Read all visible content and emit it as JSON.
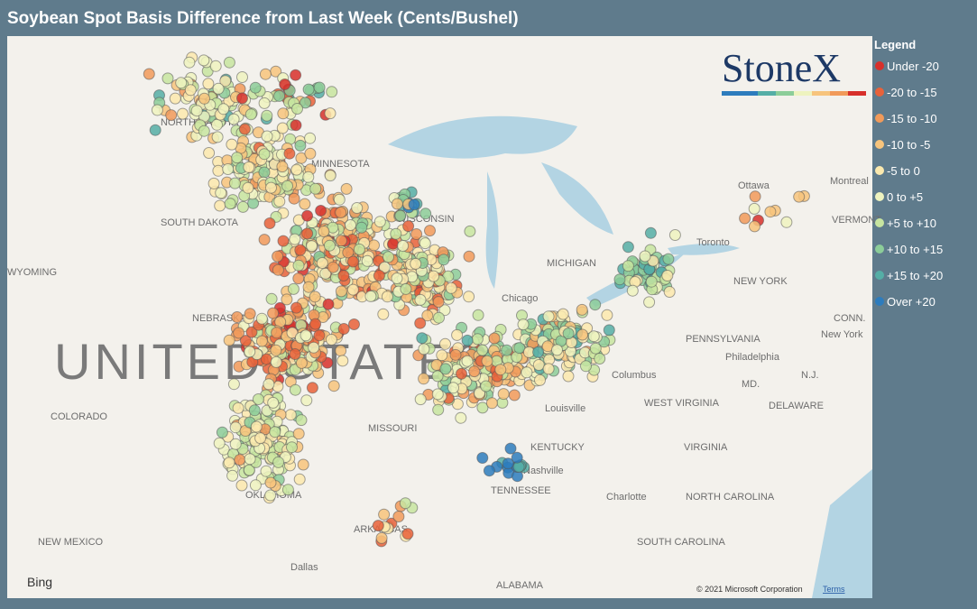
{
  "header": {
    "title": "Soybean Spot Basis Difference from Last Week (Cents/Bushel)"
  },
  "legend": {
    "title": "Legend",
    "items": [
      {
        "label": "Under -20",
        "color": "#d7302b"
      },
      {
        "label": "-20 to -15",
        "color": "#e8623a"
      },
      {
        "label": "-15 to -10",
        "color": "#f19a5a"
      },
      {
        "label": "-10 to -5",
        "color": "#f7c47c"
      },
      {
        "label": "-5 to 0",
        "color": "#fbe9ae"
      },
      {
        "label": "0 to +5",
        "color": "#eef3bf"
      },
      {
        "label": "+5 to +10",
        "color": "#c7e5a0"
      },
      {
        "label": "+10 to +15",
        "color": "#8ccd99"
      },
      {
        "label": "+15 to +20",
        "color": "#55aea6"
      },
      {
        "label": "Over +20",
        "color": "#2d7cbd"
      }
    ]
  },
  "logo": {
    "text": "StoneX"
  },
  "map": {
    "labels": [
      "NORTH DAKOTA",
      "MINNESOTA",
      "SOUTH DAKOTA",
      "WISCONSIN",
      "WYOMING",
      "NEBRASKA",
      "Chicago",
      "MICHIGAN",
      "COLORADO",
      "MISSOURI",
      "KENTUCKY",
      "TENNESSEE",
      "OKLAHOMA",
      "ARKANSAS",
      "NEW MEXICO",
      "Dallas",
      "ALABAMA",
      "Nashville",
      "Louisville",
      "Columbus",
      "PENNSYLVANIA",
      "NEW YORK",
      "Philadelphia",
      "WEST VIRGINIA",
      "VIRGINIA",
      "NORTH CAROLINA",
      "SOUTH CAROLINA",
      "Charlotte",
      "Toronto",
      "Ottawa",
      "Montreal",
      "VERMONT",
      "DELAWARE",
      "MD.",
      "N.J.",
      "CONN.",
      "New York"
    ],
    "country": "UNITED STATES",
    "provider": "Bing",
    "copyright": "© 2021 Microsoft Corporation",
    "terms": "Terms"
  }
}
